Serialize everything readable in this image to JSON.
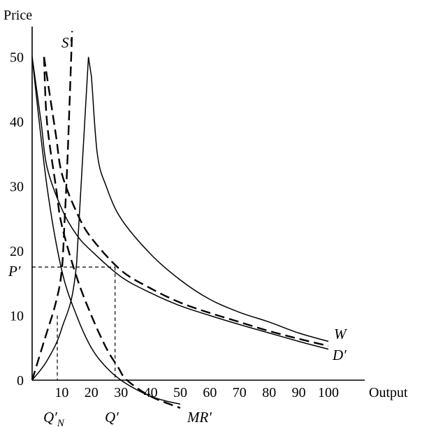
{
  "chart_data": {
    "type": "line",
    "title": "",
    "xlabel": "Output",
    "ylabel": "Price",
    "xlim": [
      0,
      100
    ],
    "ylim": [
      0,
      50
    ],
    "grid": false,
    "legend": "none",
    "x_ticks": [
      0,
      10,
      20,
      30,
      40,
      50,
      60,
      70,
      80,
      90,
      100
    ],
    "x_tick_labels": [
      "10",
      "20",
      "30",
      "40",
      "50",
      "60",
      "70",
      "80",
      "90",
      "100"
    ],
    "y_ticks": [
      0,
      10,
      20,
      30,
      40,
      50
    ],
    "y_tick_labels": [
      "0",
      "10",
      "20",
      "30",
      "40",
      "50"
    ],
    "origin_label": "0",
    "series": [
      {
        "name": "W",
        "style": "solid",
        "x": [
          0,
          5,
          10,
          15,
          19,
          20,
          22,
          25,
          30,
          40,
          50,
          60,
          70,
          80,
          90,
          100
        ],
        "y": [
          0,
          3,
          8,
          18,
          50,
          47,
          35,
          30,
          25,
          19.5,
          15.5,
          12.5,
          10.5,
          9,
          7.3,
          6
        ]
      },
      {
        "name": "D′",
        "style": "solid",
        "x": [
          0,
          3,
          5,
          10,
          15,
          20,
          30,
          40,
          50,
          60,
          70,
          80,
          90,
          100
        ],
        "y": [
          50,
          40,
          33,
          26.5,
          22.5,
          20,
          16,
          13.5,
          11.5,
          10,
          8.6,
          7.3,
          6,
          4.8
        ]
      },
      {
        "name": "",
        "style": "dashed",
        "x": [
          4,
          5,
          8,
          10,
          15,
          20,
          30,
          40,
          50,
          60,
          70,
          80,
          90,
          100
        ],
        "y": [
          50,
          47,
          38,
          32,
          26,
          22,
          17,
          14.2,
          12,
          10.4,
          9,
          7.6,
          6.4,
          5.3
        ]
      },
      {
        "name": "MR′",
        "style": "solid",
        "x": [
          0,
          5,
          10,
          15,
          20,
          25,
          30,
          35,
          40,
          45,
          50
        ],
        "y": [
          50,
          30,
          17,
          10,
          5,
          2,
          0,
          -1.4,
          -2.5,
          -3.2,
          -3.7
        ]
      },
      {
        "name": "",
        "style": "dashed",
        "x": [
          4,
          5,
          8,
          10,
          15,
          20,
          25,
          29,
          32,
          40,
          50
        ],
        "y": [
          50,
          40,
          30,
          24,
          16,
          10,
          5,
          2,
          0,
          -2.5,
          -4.3
        ]
      },
      {
        "name": "S′",
        "style": "dashed",
        "x": [
          0,
          4,
          8,
          10,
          11,
          12,
          13.5
        ],
        "y": [
          0,
          6,
          12,
          17,
          25,
          35,
          54
        ]
      }
    ],
    "reference_lines": {
      "P′": 17.5,
      "Q′N": 8.5,
      "Q′": 28
    },
    "labels": {
      "W": "W",
      "D": "D′",
      "MR": "MR′",
      "S": "S′",
      "P": "P′",
      "QN": "Q′",
      "QN_sub": "N",
      "Q": "Q′"
    }
  }
}
